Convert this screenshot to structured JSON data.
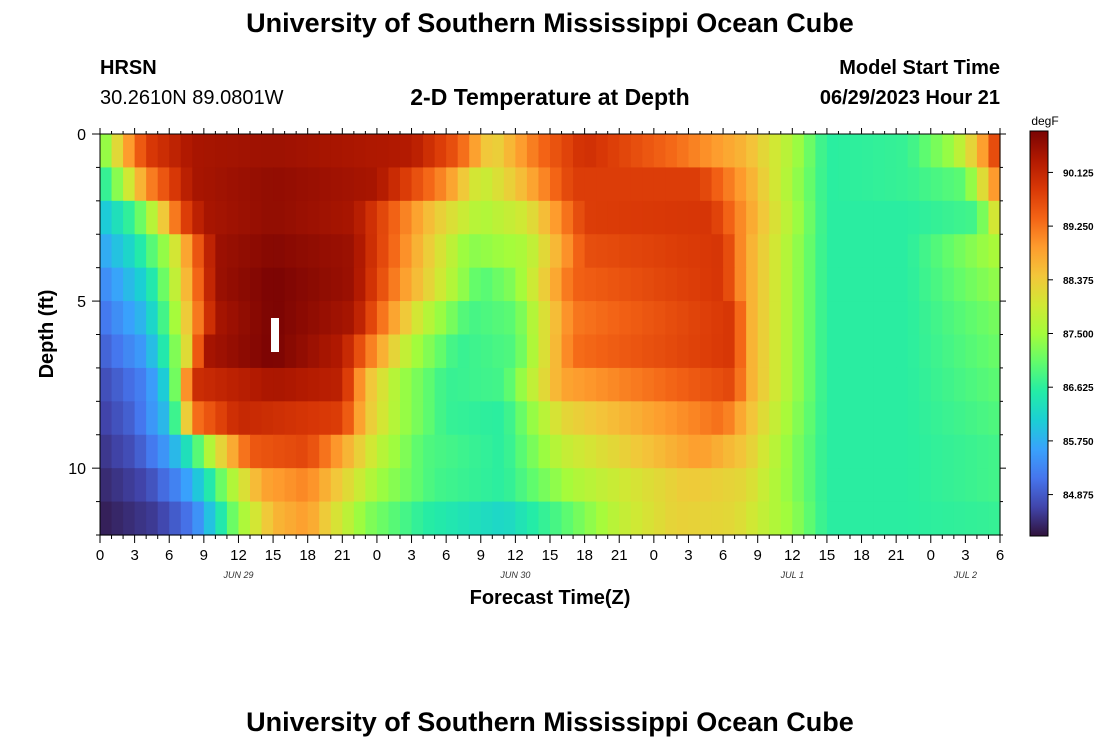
{
  "page": {
    "title": "University of Southern Mississippi Ocean Cube",
    "footer_title": "University of Southern Mississippi Ocean Cube"
  },
  "header": {
    "station_code": "HRSN",
    "station_coords": "30.2610N  89.0801W",
    "plot_title": "2-D Temperature at Depth",
    "model_start_label": "Model Start Time",
    "model_start_value": "06/29/2023 Hour 21"
  },
  "chart_data": {
    "type": "heatmap",
    "title": "2-D Temperature at Depth",
    "xlabel": "Forecast Time(Z)",
    "ylabel": "Depth (ft)",
    "x_ticks": [
      "0",
      "3",
      "6",
      "9",
      "12",
      "15",
      "18",
      "21",
      "0",
      "3",
      "6",
      "9",
      "12",
      "15",
      "18",
      "21",
      "0",
      "3",
      "6",
      "9",
      "12",
      "15",
      "18",
      "21",
      "0",
      "3",
      "6"
    ],
    "x_tick_hours": [
      0,
      3,
      6,
      9,
      12,
      15,
      18,
      21,
      24,
      27,
      30,
      33,
      36,
      39,
      42,
      45,
      48,
      51,
      54,
      57,
      60,
      63,
      66,
      69,
      72,
      75,
      78
    ],
    "date_labels": [
      {
        "text": "JUN 29",
        "hour": 12
      },
      {
        "text": "JUN 30",
        "hour": 36
      },
      {
        "text": "JUL 1",
        "hour": 60
      },
      {
        "text": "JUL 2",
        "hour": 75
      }
    ],
    "x_range_hours": [
      0,
      78
    ],
    "y_ticks": [
      0,
      5,
      10
    ],
    "y_range_ft": [
      0,
      12
    ],
    "y_inverted": true,
    "colorbar": {
      "unit": "degF",
      "ticks": [
        "90.125",
        "89.250",
        "88.375",
        "87.500",
        "86.625",
        "85.750",
        "84.875"
      ],
      "tick_values": [
        90.125,
        89.25,
        88.375,
        87.5,
        86.625,
        85.75,
        84.875
      ],
      "range": [
        84.2,
        90.8
      ]
    },
    "depth_levels_ft": [
      0.5,
      1.5,
      2.5,
      3.5,
      4.5,
      5.5,
      6.5,
      7.5,
      8.5,
      9.5,
      10.5,
      11.5
    ],
    "series": [
      {
        "depth_ft": 0.5,
        "keyframes": [
          [
            0,
            87.0
          ],
          [
            2,
            88.6
          ],
          [
            4,
            89.8
          ],
          [
            8,
            90.4
          ],
          [
            15,
            90.5
          ],
          [
            27,
            90.3
          ],
          [
            31,
            89.5
          ],
          [
            34,
            88.2
          ],
          [
            38,
            89.3
          ],
          [
            42,
            90.0
          ],
          [
            50,
            89.3
          ],
          [
            56,
            88.6
          ],
          [
            60,
            87.6
          ],
          [
            63,
            86.6
          ],
          [
            70,
            86.7
          ],
          [
            74,
            87.5
          ],
          [
            76,
            88.5
          ],
          [
            78,
            90.0
          ]
        ]
      },
      {
        "depth_ft": 1.5,
        "keyframes": [
          [
            0,
            86.4
          ],
          [
            2,
            87.6
          ],
          [
            4,
            89.0
          ],
          [
            8,
            90.4
          ],
          [
            15,
            90.6
          ],
          [
            24,
            90.4
          ],
          [
            30,
            89.0
          ],
          [
            33,
            87.8
          ],
          [
            36,
            88.4
          ],
          [
            41,
            89.8
          ],
          [
            52,
            89.8
          ],
          [
            56,
            88.8
          ],
          [
            60,
            87.5
          ],
          [
            63,
            86.6
          ],
          [
            70,
            86.7
          ],
          [
            75,
            87.0
          ],
          [
            78,
            89.3
          ]
        ]
      },
      {
        "depth_ft": 2.5,
        "keyframes": [
          [
            0,
            85.9
          ],
          [
            3,
            86.8
          ],
          [
            5,
            88.0
          ],
          [
            7,
            89.6
          ],
          [
            9,
            90.4
          ],
          [
            15,
            90.6
          ],
          [
            22,
            90.4
          ],
          [
            29,
            88.4
          ],
          [
            33,
            87.6
          ],
          [
            37,
            88.0
          ],
          [
            42,
            89.8
          ],
          [
            53,
            89.9
          ],
          [
            56,
            88.9
          ],
          [
            60,
            87.6
          ],
          [
            63,
            86.6
          ],
          [
            70,
            86.6
          ],
          [
            76,
            86.8
          ],
          [
            78,
            88.4
          ]
        ]
      },
      {
        "depth_ft": 3.5,
        "keyframes": [
          [
            0,
            85.6
          ],
          [
            3,
            86.3
          ],
          [
            6,
            87.6
          ],
          [
            8,
            89.2
          ],
          [
            10,
            90.5
          ],
          [
            15,
            90.7
          ],
          [
            22,
            90.5
          ],
          [
            28,
            88.5
          ],
          [
            32,
            87.3
          ],
          [
            37,
            87.6
          ],
          [
            42,
            89.6
          ],
          [
            54,
            89.9
          ],
          [
            56,
            88.8
          ],
          [
            60,
            87.5
          ],
          [
            63,
            86.6
          ],
          [
            70,
            86.6
          ],
          [
            78,
            87.6
          ]
        ]
      },
      {
        "depth_ft": 4.5,
        "keyframes": [
          [
            0,
            85.3
          ],
          [
            4,
            86.2
          ],
          [
            6,
            87.4
          ],
          [
            8,
            89.0
          ],
          [
            10,
            90.5
          ],
          [
            15,
            90.8
          ],
          [
            22,
            90.5
          ],
          [
            26,
            89.0
          ],
          [
            30,
            87.8
          ],
          [
            33,
            86.9
          ],
          [
            36,
            87.3
          ],
          [
            41,
            89.4
          ],
          [
            54,
            89.9
          ],
          [
            56,
            88.8
          ],
          [
            60,
            87.5
          ],
          [
            63,
            86.6
          ],
          [
            70,
            86.6
          ],
          [
            78,
            87.4
          ]
        ]
      },
      {
        "depth_ft": 5.5,
        "keyframes": [
          [
            0,
            85.1
          ],
          [
            4,
            85.9
          ],
          [
            6,
            87.1
          ],
          [
            8,
            88.8
          ],
          [
            10,
            90.4
          ],
          [
            15,
            90.8
          ],
          [
            22,
            90.4
          ],
          [
            25,
            89.0
          ],
          [
            28,
            87.8
          ],
          [
            32,
            86.8
          ],
          [
            36,
            87.0
          ],
          [
            41,
            89.2
          ],
          [
            55,
            89.9
          ],
          [
            56,
            88.8
          ],
          [
            60,
            87.5
          ],
          [
            63,
            86.6
          ],
          [
            70,
            86.6
          ],
          [
            78,
            87.2
          ]
        ]
      },
      {
        "depth_ft": 6.5,
        "keyframes": [
          [
            0,
            84.9
          ],
          [
            4,
            85.6
          ],
          [
            6,
            86.8
          ],
          [
            8,
            88.6
          ],
          [
            9,
            90.4
          ],
          [
            15,
            90.8
          ],
          [
            21,
            90.3
          ],
          [
            24,
            88.9
          ],
          [
            27,
            87.6
          ],
          [
            31,
            86.7
          ],
          [
            36,
            86.9
          ],
          [
            41,
            89.3
          ],
          [
            55,
            89.9
          ],
          [
            56,
            88.8
          ],
          [
            60,
            87.5
          ],
          [
            63,
            86.6
          ],
          [
            70,
            86.6
          ],
          [
            78,
            87.1
          ]
        ]
      },
      {
        "depth_ft": 7.5,
        "keyframes": [
          [
            0,
            84.7
          ],
          [
            4,
            85.3
          ],
          [
            6,
            86.3
          ],
          [
            7,
            88.0
          ],
          [
            8,
            90.0
          ],
          [
            15,
            90.4
          ],
          [
            21,
            90.2
          ],
          [
            23,
            88.6
          ],
          [
            26,
            87.5
          ],
          [
            30,
            86.7
          ],
          [
            35,
            86.8
          ],
          [
            40,
            88.8
          ],
          [
            55,
            89.7
          ],
          [
            56,
            88.8
          ],
          [
            60,
            87.5
          ],
          [
            63,
            86.6
          ],
          [
            70,
            86.6
          ],
          [
            78,
            87.0
          ]
        ]
      },
      {
        "depth_ft": 8.5,
        "keyframes": [
          [
            0,
            84.6
          ],
          [
            3,
            85.0
          ],
          [
            6,
            86.0
          ],
          [
            7,
            87.5
          ],
          [
            8,
            89.2
          ],
          [
            12,
            90.1
          ],
          [
            21,
            89.8
          ],
          [
            23,
            88.5
          ],
          [
            26,
            87.5
          ],
          [
            30,
            86.7
          ],
          [
            35,
            86.6
          ],
          [
            40,
            88.2
          ],
          [
            54,
            89.3
          ],
          [
            56,
            88.6
          ],
          [
            60,
            87.4
          ],
          [
            63,
            86.6
          ],
          [
            70,
            86.6
          ],
          [
            78,
            86.9
          ]
        ]
      },
      {
        "depth_ft": 9.5,
        "keyframes": [
          [
            0,
            84.5
          ],
          [
            3,
            84.8
          ],
          [
            6,
            85.6
          ],
          [
            8,
            86.6
          ],
          [
            10,
            88.0
          ],
          [
            13,
            89.5
          ],
          [
            18,
            89.7
          ],
          [
            21,
            88.8
          ],
          [
            24,
            87.8
          ],
          [
            28,
            86.9
          ],
          [
            35,
            86.6
          ],
          [
            40,
            87.8
          ],
          [
            52,
            88.9
          ],
          [
            56,
            88.4
          ],
          [
            60,
            87.3
          ],
          [
            63,
            86.6
          ],
          [
            70,
            86.6
          ],
          [
            78,
            86.8
          ]
        ]
      },
      {
        "depth_ft": 10.5,
        "keyframes": [
          [
            0,
            84.4
          ],
          [
            4,
            84.7
          ],
          [
            7,
            85.4
          ],
          [
            9,
            86.2
          ],
          [
            11,
            87.4
          ],
          [
            14,
            88.8
          ],
          [
            18,
            89.1
          ],
          [
            21,
            88.3
          ],
          [
            24,
            87.5
          ],
          [
            29,
            86.8
          ],
          [
            35,
            86.6
          ],
          [
            41,
            87.6
          ],
          [
            51,
            88.4
          ],
          [
            56,
            88.2
          ],
          [
            60,
            87.3
          ],
          [
            63,
            86.6
          ],
          [
            70,
            86.6
          ],
          [
            78,
            86.8
          ]
        ]
      },
      {
        "depth_ft": 11.5,
        "keyframes": [
          [
            0,
            84.3
          ],
          [
            5,
            84.6
          ],
          [
            8,
            85.2
          ],
          [
            10,
            86.2
          ],
          [
            12,
            87.4
          ],
          [
            15,
            88.6
          ],
          [
            18,
            88.9
          ],
          [
            20,
            88.2
          ],
          [
            23,
            87.3
          ],
          [
            28,
            86.6
          ],
          [
            35,
            86.2
          ],
          [
            40,
            86.9
          ],
          [
            45,
            87.8
          ],
          [
            50,
            88.3
          ],
          [
            55,
            88.2
          ],
          [
            60,
            87.4
          ],
          [
            63,
            86.6
          ],
          [
            70,
            86.6
          ],
          [
            78,
            86.7
          ]
        ]
      }
    ]
  },
  "colors": {
    "colormap": [
      "#30123b",
      "#4145ab",
      "#4675ed",
      "#39a2fc",
      "#1bcfd4",
      "#24eca6",
      "#61fc6c",
      "#a4fc3b",
      "#d1e834",
      "#f3c63a",
      "#fe9b2d",
      "#f36315",
      "#d93806",
      "#b11901",
      "#7a0403"
    ],
    "marker": "#ffffff"
  }
}
